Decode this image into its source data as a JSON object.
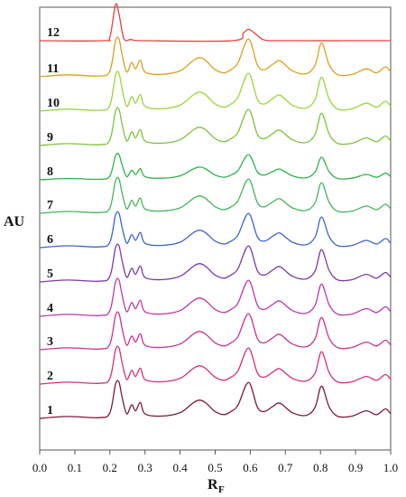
{
  "chart_data": {
    "type": "line",
    "title": "",
    "xlabel": "R",
    "xlabel_subscript": "F",
    "ylabel": "AU",
    "xlim": [
      0.0,
      1.0
    ],
    "x_ticks": [
      "0.0",
      "0.1",
      "0.2",
      "0.3",
      "0.4",
      "0.5",
      "0.6",
      "0.7",
      "0.8",
      "0.9",
      "1.0"
    ],
    "grid": false,
    "legend": "none",
    "series_shape": {
      "x": [
        0.0,
        0.08,
        0.17,
        0.2,
        0.216,
        0.226,
        0.235,
        0.248,
        0.262,
        0.273,
        0.287,
        0.3,
        0.345,
        0.4,
        0.455,
        0.5,
        0.525,
        0.545,
        0.565,
        0.595,
        0.62,
        0.64,
        0.665,
        0.685,
        0.72,
        0.76,
        0.785,
        0.803,
        0.825,
        0.85,
        0.89,
        0.93,
        0.96,
        0.985,
        1.0
      ],
      "y_relative": [
        0.0,
        0.05,
        0.02,
        0.15,
        0.9,
        0.95,
        0.55,
        0.12,
        0.36,
        0.2,
        0.42,
        0.12,
        0.06,
        0.15,
        0.48,
        0.18,
        0.1,
        0.18,
        0.35,
        0.95,
        0.3,
        0.18,
        0.32,
        0.4,
        0.15,
        0.08,
        0.3,
        0.85,
        0.3,
        0.05,
        0.06,
        0.2,
        0.1,
        0.25,
        0.12
      ]
    },
    "series": [
      {
        "name": "1",
        "color": "#7a1a3c",
        "scale": 1.0
      },
      {
        "name": "2",
        "color": "#d0307f",
        "scale": 1.0
      },
      {
        "name": "3",
        "color": "#c8338f",
        "scale": 1.0
      },
      {
        "name": "4",
        "color": "#b83aa8",
        "scale": 1.0
      },
      {
        "name": "5",
        "color": "#7a3aa6",
        "scale": 1.0
      },
      {
        "name": "6",
        "color": "#3f66c4",
        "scale": 0.95
      },
      {
        "name": "7",
        "color": "#45b55c",
        "scale": 0.95
      },
      {
        "name": "8",
        "color": "#2fb34a",
        "scale": 0.7
      },
      {
        "name": "9",
        "color": "#7cc33a",
        "scale": 1.0
      },
      {
        "name": "10",
        "color": "#9ad63a",
        "scale": 1.05
      },
      {
        "name": "11",
        "color": "#d9a020",
        "scale": 1.05
      },
      {
        "name": "12",
        "color": "#e84040",
        "scale": 0.0
      }
    ],
    "series12_shape": {
      "x": [
        0.0,
        0.18,
        0.2,
        0.216,
        0.226,
        0.24,
        0.26,
        0.3,
        0.55,
        0.58,
        0.595,
        0.615,
        0.64,
        0.7,
        1.0
      ],
      "y_relative": [
        0.0,
        0.0,
        0.1,
        0.95,
        0.7,
        0.05,
        0.03,
        0.0,
        0.0,
        0.2,
        0.3,
        0.18,
        0.02,
        0.0,
        0.0
      ]
    }
  }
}
